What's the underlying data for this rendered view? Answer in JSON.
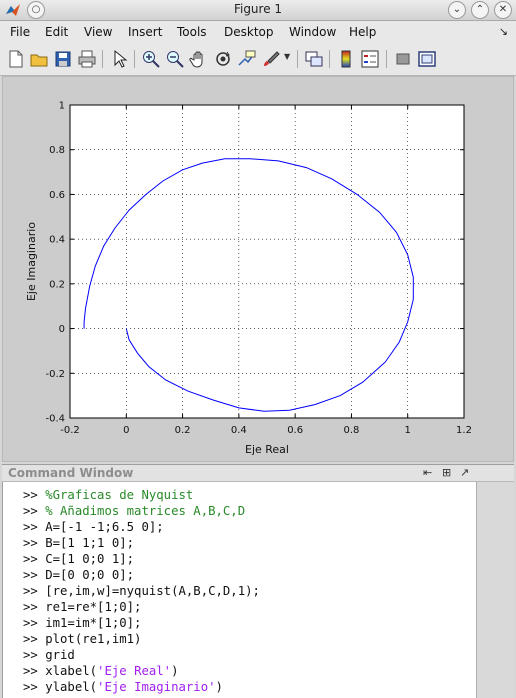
{
  "window": {
    "title": "Figure 1"
  },
  "menu": [
    "File",
    "Edit",
    "View",
    "Insert",
    "Tools",
    "Desktop",
    "Window",
    "Help"
  ],
  "toolbar": {
    "buttons": [
      "new-figure-icon",
      "open-file-icon",
      "save-icon",
      "print-icon",
      "arrow-pointer-icon",
      "zoom-in-icon",
      "zoom-out-icon",
      "pan-hand-icon",
      "rotate-3d-icon",
      "data-cursor-icon",
      "brush-icon",
      "link-plot-icon",
      "insert-colorbar-icon",
      "insert-legend-icon",
      "hide-plot-tools-icon",
      "show-plot-tools-icon"
    ]
  },
  "chart_data": {
    "type": "line",
    "title": "",
    "xlabel": "Eje Real",
    "ylabel": "Eje Imaginario",
    "xlim": [
      -0.2,
      1.2
    ],
    "ylim": [
      -0.4,
      1.0
    ],
    "xticks": [
      "-0.2",
      "0",
      "0.2",
      "0.4",
      "0.6",
      "0.8",
      "1",
      "1.2"
    ],
    "yticks": [
      "-0.4",
      "-0.2",
      "0",
      "0.2",
      "0.4",
      "0.6",
      "0.8",
      "1"
    ],
    "grid": true,
    "line_color": "#0000ff",
    "series": [
      {
        "x": [
          0.0,
          0.01,
          0.04,
          0.08,
          0.14,
          0.22,
          0.31,
          0.4,
          0.49,
          0.58,
          0.67,
          0.76,
          0.84,
          0.92,
          0.97,
          1.0,
          1.02,
          1.02,
          1.0,
          0.96,
          0.9,
          0.82,
          0.73,
          0.64,
          0.54,
          0.44,
          0.35,
          0.27,
          0.2,
          0.13,
          0.07,
          0.01,
          -0.04,
          -0.08,
          -0.11,
          -0.13,
          -0.145,
          -0.15,
          -0.15
        ],
        "y": [
          0.0,
          -0.05,
          -0.11,
          -0.17,
          -0.23,
          -0.28,
          -0.32,
          -0.355,
          -0.37,
          -0.365,
          -0.34,
          -0.3,
          -0.24,
          -0.15,
          -0.06,
          0.03,
          0.13,
          0.23,
          0.33,
          0.43,
          0.52,
          0.6,
          0.67,
          0.72,
          0.75,
          0.76,
          0.76,
          0.74,
          0.71,
          0.66,
          0.6,
          0.53,
          0.45,
          0.37,
          0.28,
          0.19,
          0.09,
          0.03,
          0.0
        ]
      }
    ]
  },
  "command_window": {
    "title": "Command Window",
    "lines": [
      {
        "prompt": ">> ",
        "text": "%Graficas de Nyquist",
        "kind": "comment"
      },
      {
        "prompt": ">> ",
        "text": "% Añadimos matrices A,B,C,D",
        "kind": "comment"
      },
      {
        "prompt": ">> ",
        "text": "A=[-1 -1;6.5 0];",
        "kind": "code"
      },
      {
        "prompt": ">> ",
        "text": "B=[1 1;1 0];",
        "kind": "code"
      },
      {
        "prompt": ">> ",
        "text": "C=[1 0;0 1];",
        "kind": "code"
      },
      {
        "prompt": ">> ",
        "text": "D=[0 0;0 0];",
        "kind": "code"
      },
      {
        "prompt": ">> ",
        "text": "[re,im,w]=nyquist(A,B,C,D,1);",
        "kind": "code"
      },
      {
        "prompt": ">> ",
        "text": "re1=re*[1;0];",
        "kind": "code"
      },
      {
        "prompt": ">> ",
        "text": "im1=im*[1;0];",
        "kind": "code"
      },
      {
        "prompt": ">> ",
        "text": "plot(re1,im1)",
        "kind": "code"
      },
      {
        "prompt": ">> ",
        "text": "grid",
        "kind": "code"
      },
      {
        "prompt": ">> ",
        "pre": "xlabel(",
        "str": "'Eje Real'",
        "post": ")",
        "kind": "string"
      },
      {
        "prompt": ">> ",
        "pre": "ylabel(",
        "str": "'Eje Imaginario'",
        "post": ")",
        "kind": "string"
      }
    ]
  }
}
